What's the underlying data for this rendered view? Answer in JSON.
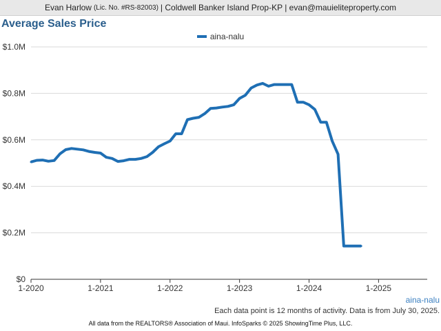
{
  "header": {
    "name": "Evan Harlow",
    "license": "(Lic. No. #RS-82003)",
    "rest": "| Coldwell Banker Island Prop-KP | evan@mauieliteproperty.com"
  },
  "footer": {
    "series_label": "aina-nalu",
    "note": "Each data point is 12 months of activity. Data is from July 30, 2025.",
    "source": "All data from the REALTORS® Association of Maui. InfoSparks © 2025 ShowingTime Plus, LLC."
  },
  "chart_data": {
    "type": "line",
    "title": "Average Sales Price",
    "xlabel": "",
    "ylabel": "",
    "xlim": [
      2020.0,
      2025.7
    ],
    "ylim": [
      0,
      1000000
    ],
    "y_ticks": [
      0,
      200000,
      400000,
      600000,
      800000,
      1000000
    ],
    "y_tick_labels": [
      "$0",
      "$0.2M",
      "$0.4M",
      "$0.6M",
      "$0.8M",
      "$1.0M"
    ],
    "x_ticks": [
      2020,
      2021,
      2022,
      2023,
      2024,
      2025
    ],
    "x_tick_labels": [
      "1-2020",
      "1-2021",
      "1-2022",
      "1-2023",
      "1-2024",
      "1-2025"
    ],
    "grid": true,
    "legend": "top-center",
    "series_color": "#1f6fb4",
    "series": [
      {
        "name": "aina-nalu",
        "x": [
          2020.0,
          2020.083,
          2020.167,
          2020.25,
          2020.333,
          2020.417,
          2020.5,
          2020.583,
          2020.667,
          2020.75,
          2020.833,
          2020.917,
          2021.0,
          2021.083,
          2021.167,
          2021.25,
          2021.333,
          2021.417,
          2021.5,
          2021.583,
          2021.667,
          2021.75,
          2021.833,
          2021.917,
          2022.0,
          2022.083,
          2022.167,
          2022.25,
          2022.333,
          2022.417,
          2022.5,
          2022.583,
          2022.667,
          2022.75,
          2022.833,
          2022.917,
          2023.0,
          2023.083,
          2023.167,
          2023.25,
          2023.333,
          2023.417,
          2023.5,
          2023.583,
          2023.667,
          2023.75,
          2023.833,
          2023.917,
          2024.0,
          2024.083,
          2024.167,
          2024.25,
          2024.333,
          2024.417,
          2024.5,
          2024.583,
          2024.667,
          2024.75
        ],
        "values": [
          505000,
          512000,
          513000,
          508000,
          511000,
          540000,
          558000,
          563000,
          560000,
          557000,
          550000,
          546000,
          543000,
          525000,
          520000,
          507000,
          510000,
          516000,
          516000,
          520000,
          528000,
          546000,
          570000,
          583000,
          595000,
          626000,
          626000,
          687000,
          693000,
          697000,
          713000,
          735000,
          737000,
          741000,
          744000,
          751000,
          778000,
          792000,
          823000,
          836000,
          843000,
          831000,
          838000,
          838000,
          838000,
          838000,
          762000,
          762000,
          751000,
          731000,
          676000,
          676000,
          595000,
          538000,
          143000,
          143000,
          143000,
          143000
        ]
      }
    ]
  }
}
